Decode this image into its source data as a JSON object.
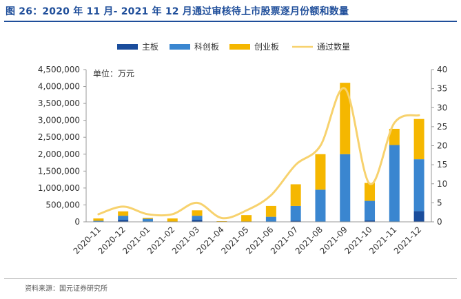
{
  "title": "图 26：2020 年 11 月- 2021 年 12 月通过审核待上市股票逐月份额和数量",
  "source_note": "资料来源：国元证券研究所",
  "colors": {
    "title": "#1f4e9a",
    "main_board": "#1a4d9c",
    "star_market": "#3a86d0",
    "chinext": "#f5b700",
    "approved_count": "#f7d26e"
  },
  "chart_data": {
    "type": "bar",
    "stacked": true,
    "unit_label": "单位：万元",
    "categories": [
      "2020-11",
      "2020-12",
      "2021-01",
      "2021-02",
      "2021-03",
      "2021-04",
      "2021-05",
      "2021-06",
      "2021-07",
      "2021-08",
      "2021-09",
      "2021-10",
      "2021-11",
      "2021-12"
    ],
    "series": [
      {
        "name": "主板",
        "kind": "bar",
        "axis": "left",
        "values": [
          0,
          60000,
          0,
          0,
          60000,
          0,
          0,
          0,
          30000,
          0,
          0,
          40000,
          0,
          320000
        ]
      },
      {
        "name": "科创板",
        "kind": "bar",
        "axis": "left",
        "values": [
          30000,
          120000,
          90000,
          0,
          120000,
          0,
          0,
          150000,
          440000,
          950000,
          2000000,
          580000,
          2270000,
          1530000
        ]
      },
      {
        "name": "创业板",
        "kind": "bar",
        "axis": "left",
        "values": [
          70000,
          130000,
          30000,
          100000,
          160000,
          20000,
          200000,
          320000,
          640000,
          1050000,
          2110000,
          530000,
          480000,
          1190000
        ]
      },
      {
        "name": "通过数量",
        "kind": "line",
        "axis": "right",
        "values": [
          2,
          4,
          2,
          2,
          5,
          1,
          3,
          7,
          15,
          20,
          35,
          10,
          26,
          28
        ]
      }
    ],
    "yleft": {
      "min": 0,
      "max": 4500000,
      "step": 500000,
      "tick_labels": [
        "0",
        "500,000",
        "1,000,000",
        "1,500,000",
        "2,000,000",
        "2,500,000",
        "3,000,000",
        "3,500,000",
        "4,000,000",
        "4,500,000"
      ]
    },
    "yright": {
      "min": 0,
      "max": 40,
      "step": 5,
      "tick_labels": [
        "0",
        "5",
        "10",
        "15",
        "20",
        "25",
        "30",
        "35",
        "40"
      ]
    },
    "legend_position": "top",
    "grid": false
  }
}
